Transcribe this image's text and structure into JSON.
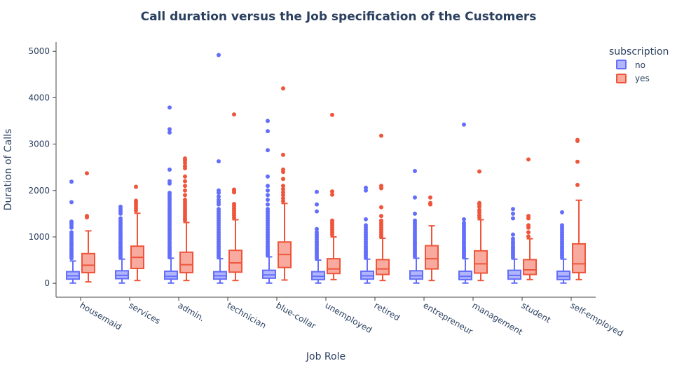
{
  "chart_data": {
    "type": "box",
    "title": "Call duration versus the Job specification of the Customers",
    "xlabel": "Job Role",
    "ylabel": "Duration of Calls",
    "ylim": [
      -300,
      5200
    ],
    "yticks": [
      0,
      1000,
      2000,
      3000,
      4000,
      5000
    ],
    "grid": false,
    "legend": {
      "title": "subscription",
      "placement": "top-right"
    },
    "categories": [
      "housemaid",
      "services",
      "admin.",
      "technician",
      "blue-collar",
      "unemployed",
      "retired",
      "entrepreneur",
      "management",
      "student",
      "self-employed"
    ],
    "series": [
      {
        "name": "no",
        "color": "#636efa",
        "boxes": [
          {
            "q1": 90,
            "median": 160,
            "q3": 250,
            "min": 5,
            "max": 480,
            "outliers": [
              540,
              580,
              620,
              660,
              700,
              740,
              780,
              820,
              860,
              900,
              950,
              1000,
              1050,
              1100,
              1200,
              1250,
              1300,
              1330,
              1750,
              2190
            ]
          },
          {
            "q1": 100,
            "median": 170,
            "q3": 270,
            "min": 5,
            "max": 520,
            "outliers": [
              560,
              600,
              640,
              680,
              720,
              760,
              800,
              850,
              900,
              950,
              1000,
              1050,
              1100,
              1150,
              1200,
              1250,
              1300,
              1350,
              1400,
              1500,
              1550,
              1600,
              1650
            ]
          },
          {
            "q1": 90,
            "median": 150,
            "q3": 260,
            "min": 5,
            "max": 540,
            "outliers": [
              560,
              600,
              640,
              680,
              720,
              760,
              800,
              850,
              900,
              950,
              1000,
              1050,
              1100,
              1150,
              1200,
              1250,
              1300,
              1350,
              1400,
              1450,
              1500,
              1550,
              1600,
              1650,
              1700,
              1750,
              1800,
              1850,
              1900,
              1950,
              2150,
              2200,
              2450,
              3250,
              3320,
              3790
            ]
          },
          {
            "q1": 90,
            "median": 160,
            "q3": 250,
            "min": 5,
            "max": 530,
            "outliers": [
              560,
              600,
              640,
              680,
              720,
              760,
              800,
              850,
              900,
              950,
              1000,
              1050,
              1100,
              1150,
              1200,
              1250,
              1300,
              1350,
              1400,
              1450,
              1500,
              1550,
              1600,
              1700,
              1750,
              1800,
              1870,
              1950,
              2000,
              2630,
              4920
            ]
          },
          {
            "q1": 110,
            "median": 180,
            "q3": 280,
            "min": 5,
            "max": 570,
            "outliers": [
              600,
              640,
              680,
              720,
              760,
              800,
              850,
              900,
              950,
              1000,
              1050,
              1100,
              1150,
              1200,
              1250,
              1300,
              1350,
              1400,
              1450,
              1500,
              1550,
              1600,
              1700,
              1800,
              1900,
              2000,
              2100,
              2300,
              2870,
              3280,
              3500
            ]
          },
          {
            "q1": 80,
            "median": 150,
            "q3": 250,
            "min": 5,
            "max": 500,
            "outliers": [
              540,
              580,
              620,
              660,
              700,
              740,
              780,
              820,
              860,
              900,
              950,
              1000,
              1050,
              1100,
              1170,
              1550,
              1700,
              1970
            ]
          },
          {
            "q1": 90,
            "median": 160,
            "q3": 260,
            "min": 5,
            "max": 520,
            "outliers": [
              560,
              600,
              640,
              680,
              720,
              760,
              800,
              850,
              900,
              950,
              1000,
              1050,
              1100,
              1150,
              1200,
              1250,
              1380,
              2000,
              2060
            ]
          },
          {
            "q1": 90,
            "median": 160,
            "q3": 270,
            "min": 5,
            "max": 540,
            "outliers": [
              580,
              620,
              660,
              700,
              740,
              780,
              820,
              860,
              900,
              950,
              1000,
              1050,
              1100,
              1150,
              1200,
              1250,
              1300,
              1350,
              1500,
              1850,
              2420
            ]
          },
          {
            "q1": 80,
            "median": 150,
            "q3": 260,
            "min": 5,
            "max": 530,
            "outliers": [
              560,
              600,
              640,
              680,
              720,
              760,
              800,
              850,
              900,
              950,
              1000,
              1050,
              1100,
              1150,
              1200,
              1250,
              1300,
              1380,
              3420
            ]
          },
          {
            "q1": 90,
            "median": 170,
            "q3": 280,
            "min": 5,
            "max": 520,
            "outliers": [
              560,
              600,
              640,
              680,
              720,
              760,
              800,
              850,
              900,
              960,
              1050,
              1400,
              1500,
              1600
            ]
          },
          {
            "q1": 80,
            "median": 150,
            "q3": 260,
            "min": 5,
            "max": 520,
            "outliers": [
              560,
              600,
              640,
              680,
              720,
              760,
              800,
              850,
              900,
              950,
              1000,
              1050,
              1100,
              1150,
              1200,
              1250,
              1530
            ]
          }
        ]
      },
      {
        "name": "yes",
        "color": "#ef553b",
        "boxes": [
          {
            "q1": 230,
            "median": 390,
            "q3": 640,
            "min": 30,
            "max": 1130,
            "outliers": [
              1420,
              1450,
              2370
            ]
          },
          {
            "q1": 320,
            "median": 560,
            "q3": 800,
            "min": 60,
            "max": 1510,
            "outliers": [
              1570,
              1620,
              1680,
              1730,
              1780,
              2080
            ]
          },
          {
            "q1": 230,
            "median": 400,
            "q3": 670,
            "min": 60,
            "max": 1310,
            "outliers": [
              1360,
              1400,
              1450,
              1500,
              1550,
              1600,
              1650,
              1700,
              1750,
              1800,
              1900,
              2000,
              2100,
              2200,
              2300,
              2480,
              2530,
              2600,
              2650,
              2690
            ]
          },
          {
            "q1": 240,
            "median": 440,
            "q3": 710,
            "min": 60,
            "max": 1370,
            "outliers": [
              1410,
              1460,
              1510,
              1560,
              1610,
              1660,
              1710,
              1960,
              2000,
              2020,
              3640
            ]
          },
          {
            "q1": 340,
            "median": 620,
            "q3": 890,
            "min": 70,
            "max": 1720,
            "outliers": [
              1770,
              1830,
              1900,
              1960,
              2030,
              2100,
              2250,
              2400,
              2450,
              2770,
              4200
            ]
          },
          {
            "q1": 210,
            "median": 310,
            "q3": 530,
            "min": 80,
            "max": 1000,
            "outliers": [
              1050,
              1100,
              1150,
              1200,
              1250,
              1300,
              1350,
              1910,
              1980,
              3630
            ]
          },
          {
            "q1": 190,
            "median": 310,
            "q3": 510,
            "min": 60,
            "max": 970,
            "outliers": [
              1000,
              1050,
              1100,
              1150,
              1200,
              1250,
              1300,
              1350,
              1450,
              1640,
              2050,
              2100,
              3180
            ]
          },
          {
            "q1": 310,
            "median": 530,
            "q3": 810,
            "min": 60,
            "max": 1240,
            "outliers": [
              1700,
              1730,
              1850
            ]
          },
          {
            "q1": 220,
            "median": 420,
            "q3": 700,
            "min": 60,
            "max": 1370,
            "outliers": [
              1420,
              1470,
              1530,
              1580,
              1650,
              1700,
              1730,
              2410
            ]
          },
          {
            "q1": 190,
            "median": 290,
            "q3": 510,
            "min": 80,
            "max": 960,
            "outliers": [
              1010,
              1100,
              1200,
              1250,
              1400,
              1450,
              2670
            ]
          },
          {
            "q1": 230,
            "median": 420,
            "q3": 850,
            "min": 80,
            "max": 1790,
            "outliers": [
              2120,
              2620,
              3070,
              3090
            ]
          }
        ]
      }
    ]
  }
}
